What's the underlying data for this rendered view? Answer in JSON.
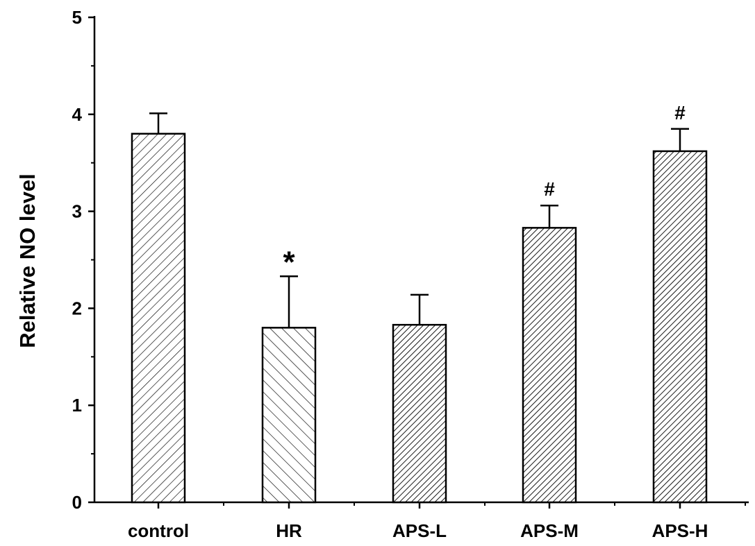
{
  "chart_data": {
    "type": "bar",
    "title": "",
    "xlabel": "",
    "ylabel": "Relative NO level",
    "categories": [
      "control",
      "HR",
      "APS-L",
      "APS-M",
      "APS-H"
    ],
    "values": [
      3.8,
      1.8,
      1.83,
      2.83,
      3.62
    ],
    "error_upper": [
      4.01,
      2.33,
      2.14,
      3.06,
      3.85
    ],
    "annotations": [
      "",
      "*",
      "",
      "#",
      "#"
    ],
    "ylim": [
      0,
      5
    ],
    "yticks": [
      "0",
      "1",
      "2",
      "3",
      "4",
      "5"
    ],
    "grid": false,
    "legend": "none",
    "bar_fill": "hatched",
    "colors": {
      "bar_outline": "#000000",
      "hatch": "#000000",
      "background": "#ffffff"
    }
  }
}
